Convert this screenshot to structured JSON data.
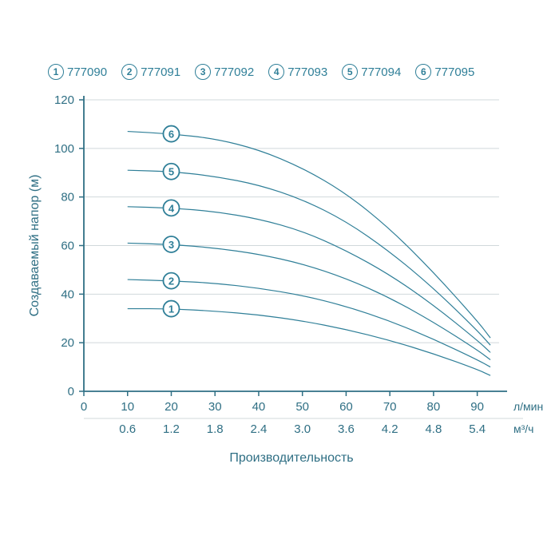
{
  "legend": {
    "color": "#2f7f98",
    "items": [
      {
        "n": "1",
        "label": "777090"
      },
      {
        "n": "2",
        "label": "777091"
      },
      {
        "n": "3",
        "label": "777092"
      },
      {
        "n": "4",
        "label": "777093"
      },
      {
        "n": "5",
        "label": "777094"
      },
      {
        "n": "6",
        "label": "777095"
      }
    ]
  },
  "chart": {
    "type": "line",
    "y_label": "Создаваемый напор (м)",
    "y_label_fontsize": 16,
    "x_label": "Производительность",
    "x_label_fontsize": 16,
    "x1_unit": "л/мин",
    "x2_unit": "м³/ч",
    "axis_color": "#2f6f84",
    "grid_color": "#d0d8db",
    "tick_color": "#2f6f84",
    "label_color": "#2f6f84",
    "curve_color": "#2f7f98",
    "curve_width": 1.2,
    "badge_fill": "#ffffff",
    "badge_radius": 10,
    "badge_fontsize": 13,
    "ylim": [
      0,
      120
    ],
    "yticks": [
      0,
      20,
      40,
      60,
      80,
      100,
      120
    ],
    "xlim": [
      0,
      95
    ],
    "x1_ticks": [
      0,
      10,
      20,
      30,
      40,
      50,
      60,
      70,
      80,
      90
    ],
    "x2_ticks": [
      "",
      "0.6",
      "1.2",
      "1.8",
      "2.4",
      "3.0",
      "3.6",
      "4.2",
      "4.8",
      "5.4"
    ],
    "series": [
      {
        "id": "1",
        "badge_x": 20,
        "points": [
          {
            "x": 10,
            "y": 34
          },
          {
            "x": 20,
            "y": 34
          },
          {
            "x": 30,
            "y": 33
          },
          {
            "x": 40,
            "y": 31.5
          },
          {
            "x": 50,
            "y": 29
          },
          {
            "x": 60,
            "y": 25.5
          },
          {
            "x": 70,
            "y": 21
          },
          {
            "x": 80,
            "y": 15.5
          },
          {
            "x": 90,
            "y": 9
          },
          {
            "x": 93,
            "y": 6.5
          }
        ]
      },
      {
        "id": "2",
        "badge_x": 20,
        "points": [
          {
            "x": 10,
            "y": 46
          },
          {
            "x": 20,
            "y": 45.5
          },
          {
            "x": 30,
            "y": 44.5
          },
          {
            "x": 40,
            "y": 42.5
          },
          {
            "x": 50,
            "y": 39.5
          },
          {
            "x": 60,
            "y": 35
          },
          {
            "x": 70,
            "y": 29
          },
          {
            "x": 80,
            "y": 21.5
          },
          {
            "x": 90,
            "y": 13
          },
          {
            "x": 93,
            "y": 10
          }
        ]
      },
      {
        "id": "3",
        "badge_x": 20,
        "points": [
          {
            "x": 10,
            "y": 61
          },
          {
            "x": 20,
            "y": 60.5
          },
          {
            "x": 30,
            "y": 59
          },
          {
            "x": 40,
            "y": 56.5
          },
          {
            "x": 50,
            "y": 52.5
          },
          {
            "x": 60,
            "y": 46.5
          },
          {
            "x": 70,
            "y": 38.5
          },
          {
            "x": 80,
            "y": 28.5
          },
          {
            "x": 90,
            "y": 17
          },
          {
            "x": 93,
            "y": 13
          }
        ]
      },
      {
        "id": "4",
        "badge_x": 20,
        "points": [
          {
            "x": 10,
            "y": 76
          },
          {
            "x": 20,
            "y": 75.5
          },
          {
            "x": 30,
            "y": 74
          },
          {
            "x": 40,
            "y": 71
          },
          {
            "x": 50,
            "y": 66
          },
          {
            "x": 60,
            "y": 58
          },
          {
            "x": 70,
            "y": 48
          },
          {
            "x": 80,
            "y": 35.5
          },
          {
            "x": 90,
            "y": 21
          },
          {
            "x": 93,
            "y": 16
          }
        ]
      },
      {
        "id": "5",
        "badge_x": 20,
        "points": [
          {
            "x": 10,
            "y": 91
          },
          {
            "x": 20,
            "y": 90.5
          },
          {
            "x": 30,
            "y": 88.5
          },
          {
            "x": 40,
            "y": 85
          },
          {
            "x": 50,
            "y": 79
          },
          {
            "x": 60,
            "y": 70
          },
          {
            "x": 70,
            "y": 57.5
          },
          {
            "x": 80,
            "y": 42.5
          },
          {
            "x": 90,
            "y": 25
          },
          {
            "x": 93,
            "y": 19
          }
        ]
      },
      {
        "id": "6",
        "badge_x": 20,
        "points": [
          {
            "x": 10,
            "y": 107
          },
          {
            "x": 20,
            "y": 106
          },
          {
            "x": 30,
            "y": 104
          },
          {
            "x": 40,
            "y": 99.5
          },
          {
            "x": 50,
            "y": 92
          },
          {
            "x": 60,
            "y": 81.5
          },
          {
            "x": 70,
            "y": 67
          },
          {
            "x": 80,
            "y": 49
          },
          {
            "x": 90,
            "y": 29
          },
          {
            "x": 93,
            "y": 22
          }
        ]
      }
    ]
  }
}
